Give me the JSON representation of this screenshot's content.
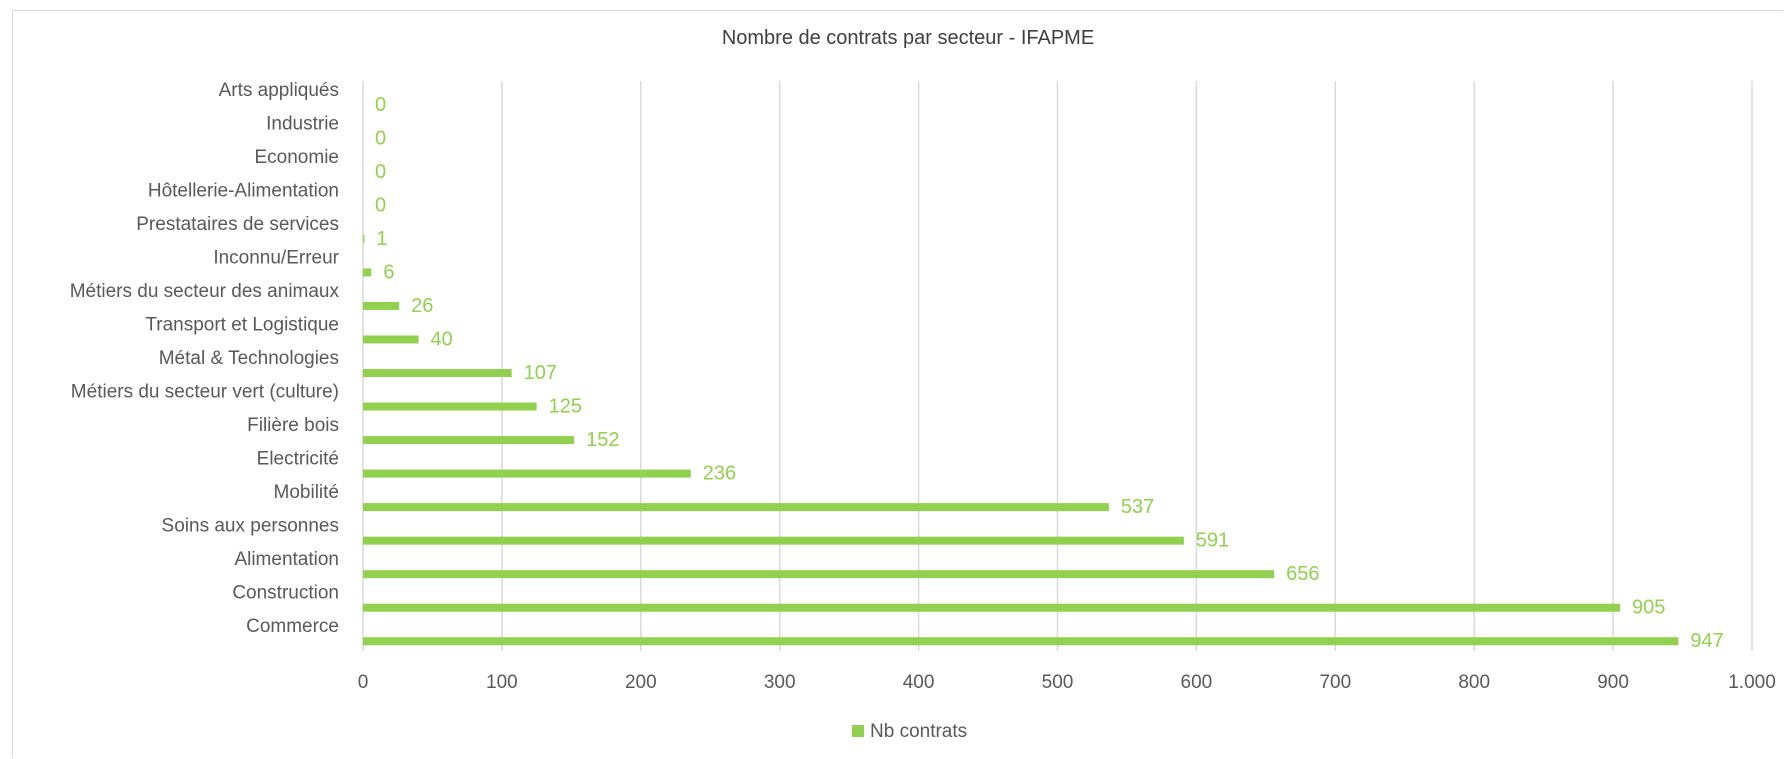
{
  "chart_data": {
    "type": "bar",
    "orientation": "horizontal",
    "title": "Nombre de contrats par secteur - IFAPME",
    "categories": [
      "Commerce",
      "Construction",
      "Alimentation",
      "Soins aux personnes",
      "Mobilité",
      "Electricité",
      "Filière bois",
      "Métiers du secteur vert (culture)",
      "Métal & Technologies",
      "Transport et Logistique",
      "Métiers du secteur des animaux",
      "Inconnu/Erreur",
      "Prestataires de services",
      "Hôtellerie-Alimentation",
      "Economie",
      "Industrie",
      "Arts appliqués"
    ],
    "series": [
      {
        "name": "Nb contrats",
        "values": [
          947,
          905,
          656,
          591,
          537,
          236,
          152,
          125,
          107,
          40,
          26,
          6,
          1,
          0,
          0,
          0,
          0
        ],
        "labels": [
          "947",
          "905",
          "656",
          "591",
          "537",
          "236",
          "152",
          "125",
          "107",
          "40",
          "26",
          "6",
          "1",
          "0",
          "0",
          "0",
          "0"
        ]
      }
    ],
    "xlim": [
      0,
      1000
    ],
    "xticks": [
      0,
      100,
      200,
      300,
      400,
      500,
      600,
      700,
      800,
      900,
      1000
    ],
    "xtick_labels": [
      "0",
      "100",
      "200",
      "300",
      "400",
      "500",
      "600",
      "700",
      "800",
      "900",
      "1.000"
    ],
    "xlabel": "",
    "ylabel": "",
    "grid": "vertical",
    "legend_position": "bottom",
    "colors": {
      "bar": "#92d050",
      "grid": "#d9d9d9",
      "text": "#595959",
      "title": "#404040"
    }
  }
}
